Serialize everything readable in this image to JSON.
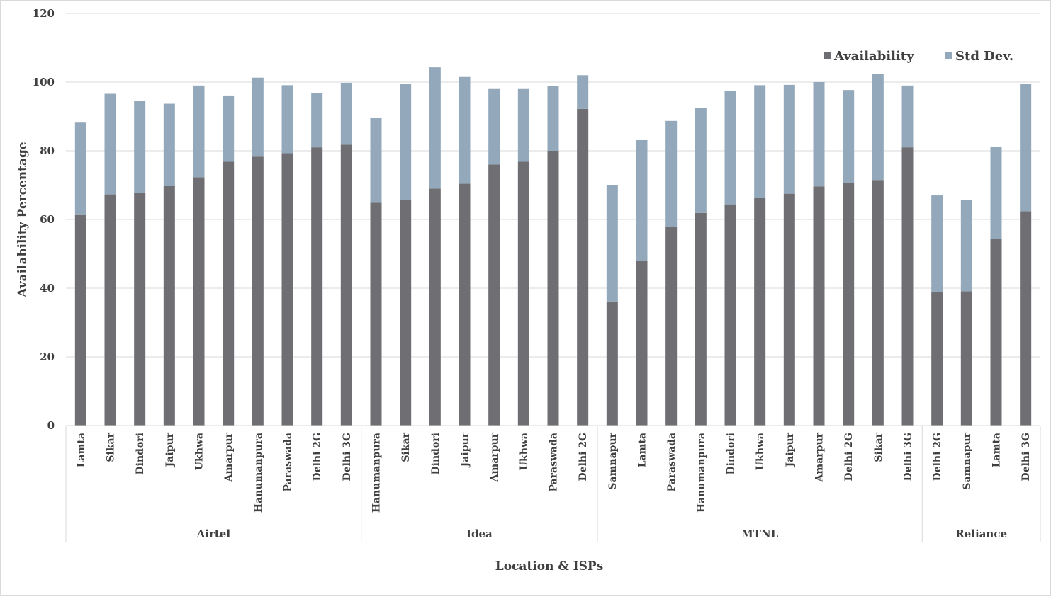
{
  "chart_data": {
    "type": "bar",
    "stacked": true,
    "xlabel": "Location & ISPs",
    "ylabel": "Availability Percentage",
    "ylim": [
      0,
      120
    ],
    "yticks": [
      0,
      20,
      40,
      60,
      80,
      100,
      120
    ],
    "grid": true,
    "legend_position": "top-right",
    "colors": {
      "Availability": "#6e6e73",
      "Std Dev.": "#93a9bb"
    },
    "groups": [
      {
        "name": "Airtel",
        "categories": [
          "Lamta",
          "Sikar",
          "Dindori",
          "Jaipur",
          "Ukhwa",
          "Amarpur",
          "Hanumanpura",
          "Paraswada",
          "Delhi 2G",
          "Delhi 3G"
        ]
      },
      {
        "name": "Idea",
        "categories": [
          "Hanumanpura",
          "Sikar",
          "Dindori",
          "Jaipur",
          "Amarpur",
          "Ukhwa",
          "Paraswada",
          "Delhi 2G"
        ]
      },
      {
        "name": "MTNL",
        "categories": [
          "Samnapur",
          "Lamta",
          "Paraswada",
          "Hanumanpura",
          "Dindori",
          "Ukhwa",
          "Jaipur",
          "Amarpur",
          "Delhi 2G",
          "Sikar",
          "Delhi 3G"
        ]
      },
      {
        "name": "Reliance",
        "categories": [
          "Delhi 2G",
          "Samnapur",
          "Lamta",
          "Delhi 3G"
        ]
      }
    ],
    "series": [
      {
        "name": "Availability",
        "values": [
          61.5,
          67.3,
          67.7,
          69.8,
          72.3,
          76.8,
          78.3,
          79.3,
          81.0,
          81.8,
          64.9,
          65.7,
          69.0,
          70.4,
          76.0,
          76.8,
          80.0,
          92.2,
          36.1,
          48.0,
          57.9,
          61.9,
          64.4,
          66.2,
          67.5,
          69.6,
          70.6,
          71.5,
          81.0,
          38.8,
          39.1,
          54.3,
          62.4
        ]
      },
      {
        "name": "Std Dev.",
        "values": [
          26.7,
          29.3,
          26.9,
          23.9,
          26.7,
          19.3,
          23.0,
          19.8,
          15.8,
          18.0,
          24.7,
          33.8,
          35.3,
          31.1,
          22.2,
          21.4,
          18.9,
          9.8,
          34.0,
          35.1,
          30.8,
          30.5,
          33.1,
          32.9,
          31.7,
          30.4,
          27.1,
          30.8,
          18.0,
          28.2,
          26.6,
          26.9,
          37.0
        ]
      }
    ]
  }
}
